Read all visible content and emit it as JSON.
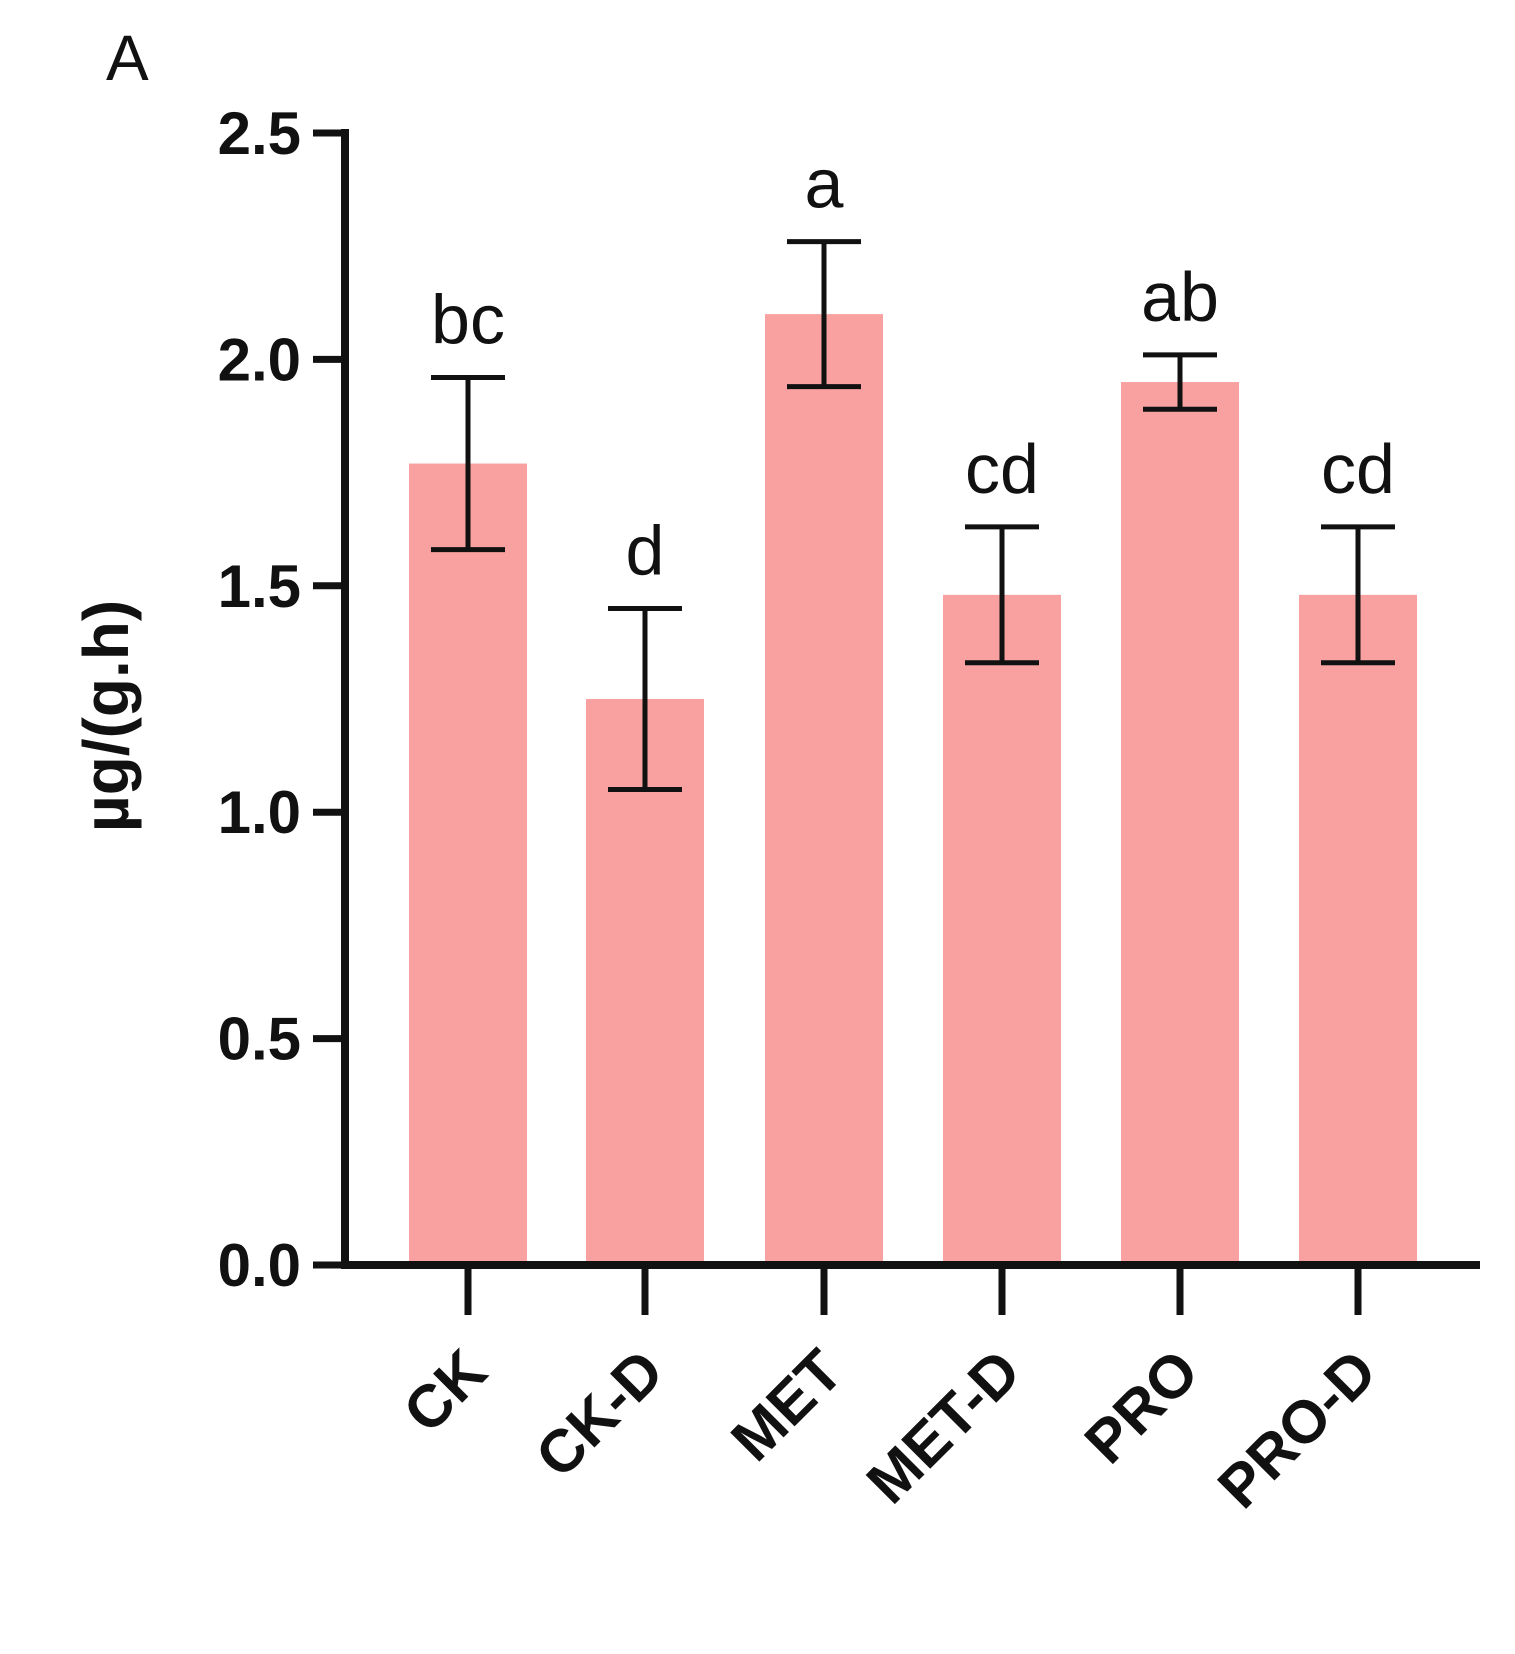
{
  "panel_label": "A",
  "chart_data": {
    "type": "bar",
    "categories": [
      "CK",
      "CK-D",
      "MET",
      "MET-D",
      "PRO",
      "PRO-D"
    ],
    "values": [
      1.77,
      1.25,
      2.1,
      1.48,
      1.95,
      1.48
    ],
    "errors": [
      0.19,
      0.2,
      0.16,
      0.15,
      0.06,
      0.15
    ],
    "significance": [
      "bc",
      "d",
      "a",
      "cd",
      "ab",
      "cd"
    ],
    "title": "",
    "xlabel": "",
    "ylabel": "µg/(g.h)",
    "ylim": [
      0,
      2.5
    ],
    "yticks": [
      "0.0",
      "0.5",
      "1.0",
      "1.5",
      "2.0",
      "2.5"
    ],
    "bar_color": "#f9a0a0",
    "grid": false,
    "legend": "none"
  }
}
